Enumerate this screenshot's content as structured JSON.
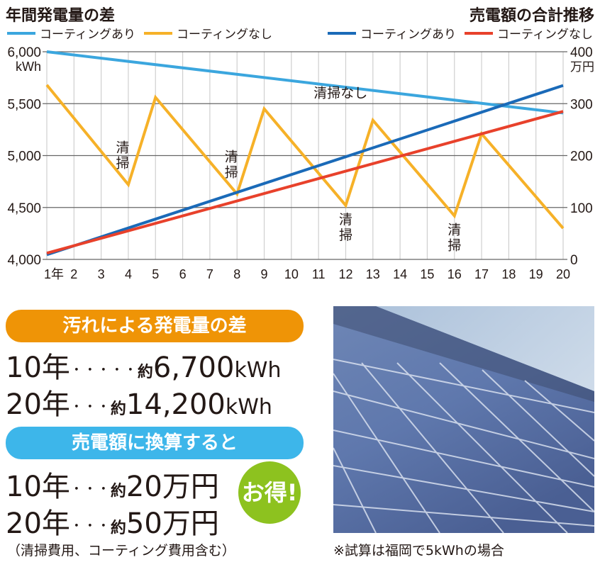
{
  "header": {
    "left_title": "年間発電量の差",
    "right_title": "売電額の合計推移",
    "legend_left": [
      {
        "label": "コーティングあり",
        "color": "#3ba6de"
      },
      {
        "label": "コーティングなし",
        "color": "#f6b128"
      }
    ],
    "legend_right": [
      {
        "label": "コーティングあり",
        "color": "#1a6ab8"
      },
      {
        "label": "コーティングなし",
        "color": "#e8412b"
      }
    ]
  },
  "chart_data": {
    "type": "line",
    "title": "年間発電量の差 / 売電額の合計推移",
    "x": [
      1,
      2,
      3,
      4,
      5,
      6,
      7,
      8,
      9,
      10,
      11,
      12,
      13,
      14,
      15,
      16,
      17,
      18,
      19,
      20
    ],
    "x_tick_labels": [
      "1年",
      "2",
      "3",
      "4",
      "5",
      "6",
      "7",
      "8",
      "9",
      "10",
      "11",
      "12",
      "13",
      "14",
      "15",
      "16",
      "17",
      "18",
      "19",
      "20"
    ],
    "xlabel": "年",
    "left_axis": {
      "label": "kWh",
      "ticks": [
        "4,000",
        "4,500",
        "5,000",
        "5,500",
        "6,000"
      ],
      "tick_values": [
        4000,
        4500,
        5000,
        5500,
        6000
      ],
      "ylim": [
        4000,
        6000
      ],
      "unit_label": "kWh"
    },
    "right_axis": {
      "label": "万円",
      "ticks": [
        "0",
        "100",
        "200",
        "300",
        "400"
      ],
      "tick_values": [
        0,
        100,
        200,
        300,
        400
      ],
      "ylim": [
        0,
        400
      ],
      "unit_label": "万円"
    },
    "grid": true,
    "series": [
      {
        "name": "年間発電量 コーティングあり",
        "axis": "left",
        "color": "#3ba6de",
        "points": [
          [
            1,
            6000
          ],
          [
            20,
            5410
          ]
        ]
      },
      {
        "name": "年間発電量 コーティングなし",
        "axis": "left",
        "color": "#f6b128",
        "points": [
          [
            1,
            5680
          ],
          [
            4,
            4720
          ],
          [
            5,
            5560
          ],
          [
            8,
            4630
          ],
          [
            9,
            5450
          ],
          [
            12,
            4520
          ],
          [
            13,
            5340
          ],
          [
            16,
            4420
          ],
          [
            17,
            5210
          ],
          [
            20,
            4300
          ]
        ]
      },
      {
        "name": "売電額 コーティングあり",
        "axis": "right",
        "color": "#1a6ab8",
        "points": [
          [
            1,
            9
          ],
          [
            20,
            335
          ]
        ]
      },
      {
        "name": "売電額 コーティングなし",
        "axis": "right",
        "color": "#e8412b",
        "points": [
          [
            1,
            12
          ],
          [
            20,
            285
          ]
        ]
      }
    ],
    "annotations": [
      {
        "text": "清掃",
        "x": 4,
        "anchor": "above-valley"
      },
      {
        "text": "清掃",
        "x": 8,
        "anchor": "above-valley"
      },
      {
        "text": "清掃",
        "x": 12,
        "anchor": "below-valley"
      },
      {
        "text": "清掃",
        "x": 16,
        "anchor": "below-valley"
      },
      {
        "text": "清掃なし",
        "x": 11.5,
        "anchor": "below-coating-line"
      }
    ],
    "legend_position": "top"
  },
  "summary": {
    "energy_pill": "汚れによる発電量の差",
    "energy_rows": [
      {
        "years": "10年",
        "dots": "・・・・・",
        "approx": "約",
        "value": "6,700",
        "unit": "kWh"
      },
      {
        "years": "20年",
        "dots": "・・・",
        "approx": "約",
        "value": "14,200",
        "unit": "kWh"
      }
    ],
    "money_pill": "売電額に換算すると",
    "money_rows": [
      {
        "years": "10年",
        "dots": "・・・",
        "approx": "約",
        "value": "20",
        "unit": "万円"
      },
      {
        "years": "20年",
        "dots": "・・・",
        "approx": "約",
        "value": "50",
        "unit": "万円"
      }
    ],
    "badge": "お得!",
    "footnote": "（清掃費用、コーティング費用含む）"
  },
  "photo": {
    "alt": "solar-panel-photo",
    "caption": "※試算は福岡で5kWhの場合"
  }
}
